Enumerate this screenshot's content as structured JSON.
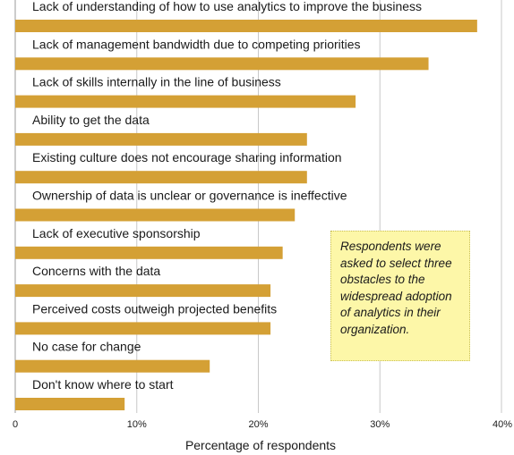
{
  "chart_data": {
    "type": "bar",
    "orientation": "horizontal",
    "categories": [
      "Lack of understanding of how to use analytics to improve the business",
      "Lack of management bandwidth due to competing priorities",
      "Lack of skills internally in the line of business",
      "Ability to get the data",
      "Existing culture does not encourage sharing information",
      "Ownership of data is unclear or governance is ineffective",
      "Lack of executive sponsorship",
      "Concerns with the data",
      "Perceived costs outweigh projected benefits",
      "No case for change",
      "Don't know where to start"
    ],
    "values": [
      38,
      34,
      28,
      24,
      24,
      23,
      22,
      21,
      21,
      16,
      9
    ],
    "xlabel": "Percentage of respondents",
    "xlim": [
      0,
      40
    ],
    "xticks": [
      "0",
      "10%",
      "20%",
      "30%",
      "40%"
    ],
    "grid": "vertical",
    "bar_color": "#d4a035",
    "annotation": "Respondents were asked to select three obstacles to the widespread adoption of analytics in their organization."
  }
}
